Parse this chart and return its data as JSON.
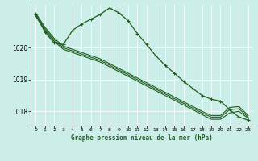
{
  "title": "Graphe pression niveau de la mer (hPa)",
  "bg_color": "#cceee8",
  "grid_color_v": "#bbdddd",
  "grid_color_h": "#bbdddd",
  "line_color": "#1e5c1e",
  "xlim": [
    -0.5,
    23.5
  ],
  "ylim": [
    1017.55,
    1021.35
  ],
  "yticks": [
    1018,
    1019,
    1020
  ],
  "xticks": [
    0,
    1,
    2,
    3,
    4,
    5,
    6,
    7,
    8,
    9,
    10,
    11,
    12,
    13,
    14,
    15,
    16,
    17,
    18,
    19,
    20,
    21,
    22,
    23
  ],
  "series": [
    {
      "x": [
        0,
        1,
        2,
        3,
        4,
        5,
        6,
        7,
        8,
        9,
        10,
        11,
        12,
        13,
        14,
        15,
        16,
        17,
        18,
        19,
        20,
        21,
        22,
        23
      ],
      "y": [
        1021.0,
        1020.55,
        1020.2,
        1019.95,
        1019.85,
        1019.75,
        1019.65,
        1019.55,
        1019.4,
        1019.25,
        1019.1,
        1018.95,
        1018.8,
        1018.65,
        1018.5,
        1018.35,
        1018.2,
        1018.05,
        1017.9,
        1017.75,
        1017.75,
        1017.95,
        1018.0,
        1017.78
      ],
      "marker": null,
      "lw": 0.8
    },
    {
      "x": [
        0,
        1,
        2,
        3,
        4,
        5,
        6,
        7,
        8,
        9,
        10,
        11,
        12,
        13,
        14,
        15,
        16,
        17,
        18,
        19,
        20,
        21,
        22,
        23
      ],
      "y": [
        1021.05,
        1020.6,
        1020.25,
        1020.0,
        1019.9,
        1019.8,
        1019.7,
        1019.6,
        1019.45,
        1019.3,
        1019.15,
        1019.0,
        1018.85,
        1018.7,
        1018.55,
        1018.4,
        1018.25,
        1018.1,
        1017.95,
        1017.82,
        1017.82,
        1018.05,
        1018.08,
        1017.82
      ],
      "marker": null,
      "lw": 0.8
    },
    {
      "x": [
        0,
        1,
        2,
        3,
        4,
        5,
        6,
        7,
        8,
        9,
        10,
        11,
        12,
        13,
        14,
        15,
        16,
        17,
        18,
        19,
        20,
        21,
        22,
        23
      ],
      "y": [
        1021.1,
        1020.65,
        1020.3,
        1020.05,
        1019.95,
        1019.85,
        1019.75,
        1019.65,
        1019.5,
        1019.35,
        1019.2,
        1019.05,
        1018.9,
        1018.75,
        1018.6,
        1018.45,
        1018.3,
        1018.15,
        1018.0,
        1017.87,
        1017.87,
        1018.12,
        1018.15,
        1017.87
      ],
      "marker": null,
      "lw": 0.8
    },
    {
      "x": [
        0,
        1,
        2,
        3,
        4,
        5,
        6,
        7,
        8,
        9,
        10,
        11,
        12,
        13,
        14,
        15,
        16,
        17,
        18,
        19,
        20,
        21,
        22,
        23
      ],
      "y": [
        1021.05,
        1020.5,
        1020.15,
        1020.1,
        1020.55,
        1020.75,
        1020.9,
        1021.05,
        1021.25,
        1021.1,
        1020.85,
        1020.45,
        1020.1,
        1019.75,
        1019.45,
        1019.2,
        1018.95,
        1018.72,
        1018.5,
        1018.38,
        1018.32,
        1018.05,
        1017.82,
        1017.72
      ],
      "marker": "+",
      "lw": 0.9
    }
  ]
}
